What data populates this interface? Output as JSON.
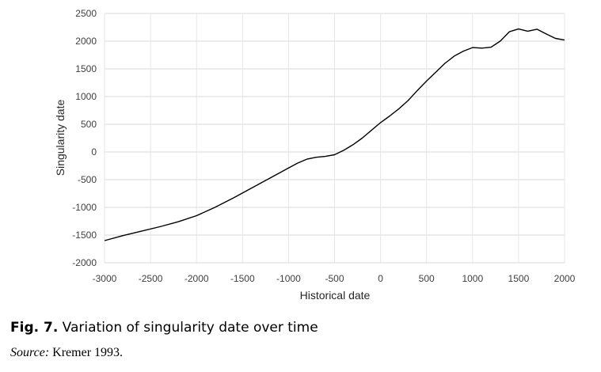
{
  "chart_data": {
    "type": "line",
    "xlabel": "Historical date",
    "ylabel": "Singularity date",
    "xlim": [
      -3000,
      2000
    ],
    "ylim": [
      -2000,
      2500
    ],
    "x_ticks": [
      -3000,
      -2500,
      -2000,
      -1500,
      -1000,
      -500,
      0,
      500,
      1000,
      1500,
      2000
    ],
    "y_ticks": [
      -2000,
      -1500,
      -1000,
      -500,
      0,
      500,
      1000,
      1500,
      2000,
      2500
    ],
    "grid": "horizontal",
    "legend": "none",
    "line_color": "#000000",
    "series": [
      {
        "points": [
          [
            -3000,
            -1600
          ],
          [
            -2800,
            -1510
          ],
          [
            -2600,
            -1430
          ],
          [
            -2400,
            -1350
          ],
          [
            -2200,
            -1260
          ],
          [
            -2000,
            -1150
          ],
          [
            -1800,
            -1000
          ],
          [
            -1600,
            -830
          ],
          [
            -1400,
            -650
          ],
          [
            -1200,
            -470
          ],
          [
            -1000,
            -290
          ],
          [
            -900,
            -200
          ],
          [
            -800,
            -130
          ],
          [
            -700,
            -95
          ],
          [
            -600,
            -80
          ],
          [
            -500,
            -50
          ],
          [
            -400,
            30
          ],
          [
            -300,
            130
          ],
          [
            -200,
            250
          ],
          [
            -100,
            390
          ],
          [
            0,
            530
          ],
          [
            100,
            650
          ],
          [
            200,
            780
          ],
          [
            300,
            930
          ],
          [
            400,
            1110
          ],
          [
            500,
            1280
          ],
          [
            600,
            1440
          ],
          [
            700,
            1600
          ],
          [
            800,
            1730
          ],
          [
            900,
            1820
          ],
          [
            1000,
            1885
          ],
          [
            1100,
            1875
          ],
          [
            1200,
            1890
          ],
          [
            1300,
            2000
          ],
          [
            1400,
            2170
          ],
          [
            1500,
            2220
          ],
          [
            1600,
            2180
          ],
          [
            1700,
            2215
          ],
          [
            1800,
            2130
          ],
          [
            1900,
            2050
          ],
          [
            2000,
            2020
          ]
        ]
      }
    ]
  },
  "caption": {
    "label": "Fig. 7.",
    "text": " Variation of singularity date over time"
  },
  "source": {
    "label": "Source:",
    "text": " Kremer 1993."
  }
}
